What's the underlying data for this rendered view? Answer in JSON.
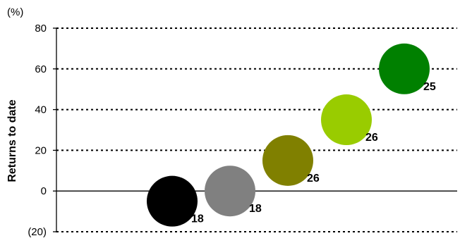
{
  "chart_data": {
    "type": "scatter",
    "title": "",
    "xlabel": "",
    "ylabel": "Returns to date",
    "unit_label": "(%)",
    "ylim": [
      -20,
      80
    ],
    "y_ticks": [
      80,
      60,
      40,
      20,
      0,
      -20
    ],
    "y_tick_labels": [
      "80",
      "60",
      "40",
      "20",
      "0",
      "(20)"
    ],
    "grid": "dotted horizontal",
    "legend": "none",
    "points": [
      {
        "x": 1,
        "y": -5,
        "label": "18",
        "color": "#000000"
      },
      {
        "x": 2,
        "y": 0,
        "label": "18",
        "color": "#808080"
      },
      {
        "x": 3,
        "y": 15,
        "label": "26",
        "color": "#808000"
      },
      {
        "x": 4,
        "y": 35,
        "label": "26",
        "color": "#99cc00"
      },
      {
        "x": 5,
        "y": 60,
        "label": "25",
        "color": "#008000"
      }
    ]
  }
}
